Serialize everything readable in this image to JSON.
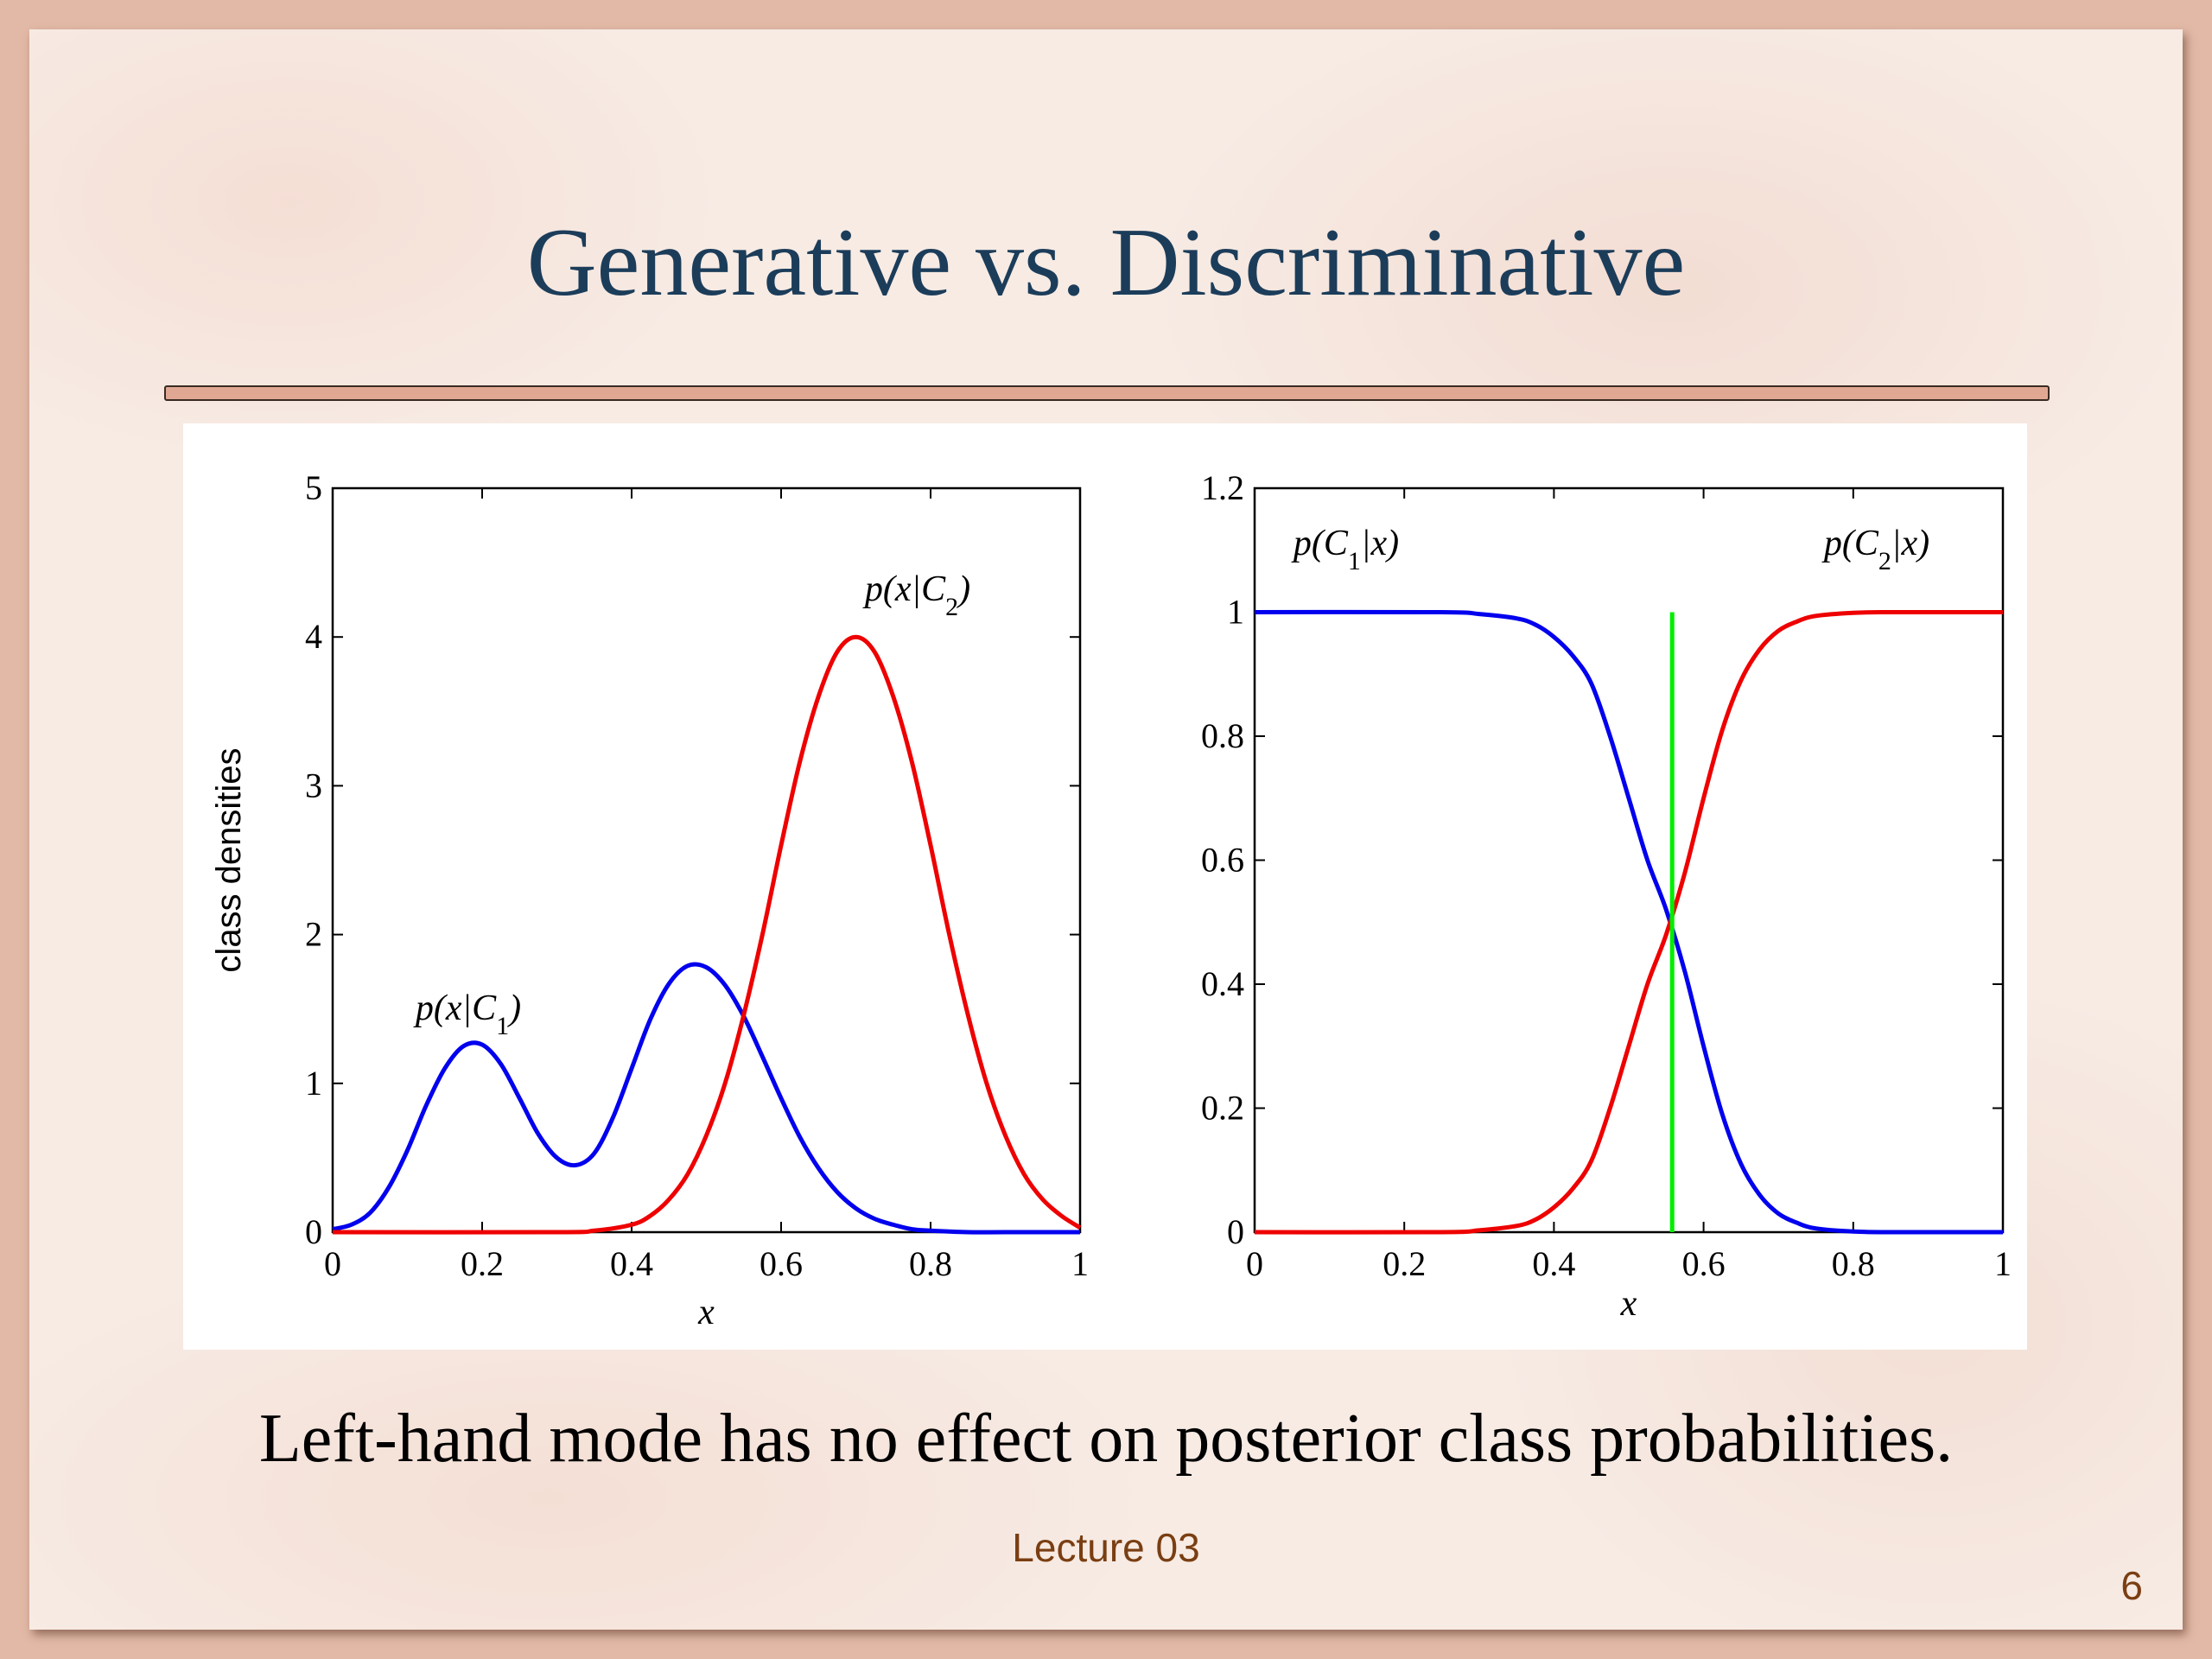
{
  "slide": {
    "title": "Generative vs. Discriminative",
    "caption": "Left-hand mode has no effect on posterior class probabilities.",
    "footer": "Lecture 03",
    "page_number": "6"
  },
  "colors": {
    "class1": "#0000ee",
    "class2": "#ee0000",
    "boundary": "#00ee00",
    "title": "#1c3d5a",
    "footer": "#7a3e12"
  },
  "chart_data": [
    {
      "type": "line",
      "xlabel": "x",
      "ylabel": "class densities",
      "xlim": [
        0,
        1
      ],
      "ylim": [
        0,
        5
      ],
      "xticks": [
        0,
        0.2,
        0.4,
        0.6,
        0.8,
        1
      ],
      "xtick_labels": [
        "0",
        "0.2",
        "0.4",
        "0.6",
        "0.8",
        "1"
      ],
      "yticks": [
        0,
        1,
        2,
        3,
        4,
        5
      ],
      "ytick_labels": [
        "0",
        "1",
        "2",
        "3",
        "4",
        "5"
      ],
      "annotations": [
        "p(x|C1)",
        "p(x|C2)"
      ],
      "series": [
        {
          "name": "p(x|C1)",
          "color": "#0000ee",
          "x": [
            0,
            0.025,
            0.05,
            0.075,
            0.1,
            0.125,
            0.15,
            0.175,
            0.2,
            0.225,
            0.25,
            0.275,
            0.3,
            0.325,
            0.35,
            0.375,
            0.4,
            0.425,
            0.45,
            0.475,
            0.5,
            0.525,
            0.55,
            0.575,
            0.6,
            0.625,
            0.65,
            0.675,
            0.7,
            0.725,
            0.75,
            0.775,
            0.8,
            0.85,
            0.9,
            1
          ],
          "y": [
            0.02,
            0.05,
            0.13,
            0.3,
            0.55,
            0.85,
            1.1,
            1.25,
            1.26,
            1.13,
            0.9,
            0.66,
            0.5,
            0.45,
            0.53,
            0.77,
            1.1,
            1.43,
            1.67,
            1.79,
            1.78,
            1.66,
            1.45,
            1.18,
            0.9,
            0.64,
            0.43,
            0.27,
            0.16,
            0.09,
            0.05,
            0.02,
            0.01,
            0,
            0,
            0
          ]
        },
        {
          "name": "p(x|C2)",
          "color": "#ee0000",
          "x": [
            0,
            0.3,
            0.35,
            0.4,
            0.425,
            0.45,
            0.475,
            0.5,
            0.525,
            0.55,
            0.575,
            0.6,
            0.625,
            0.65,
            0.675,
            0.7,
            0.725,
            0.75,
            0.775,
            0.8,
            0.825,
            0.85,
            0.875,
            0.9,
            0.925,
            0.95,
            0.975,
            1
          ],
          "y": [
            0,
            0,
            0.01,
            0.05,
            0.11,
            0.22,
            0.39,
            0.65,
            1.0,
            1.46,
            2.0,
            2.6,
            3.16,
            3.6,
            3.9,
            4.0,
            3.9,
            3.6,
            3.16,
            2.6,
            2.0,
            1.46,
            1.0,
            0.65,
            0.39,
            0.22,
            0.11,
            0.03
          ]
        }
      ]
    },
    {
      "type": "line",
      "xlabel": "x",
      "ylabel": "",
      "xlim": [
        0,
        1
      ],
      "ylim": [
        0,
        1.2
      ],
      "xticks": [
        0,
        0.2,
        0.4,
        0.6,
        0.8,
        1
      ],
      "xtick_labels": [
        "0",
        "0.2",
        "0.4",
        "0.6",
        "0.8",
        "1"
      ],
      "yticks": [
        0,
        0.2,
        0.4,
        0.6,
        0.8,
        1,
        1.2
      ],
      "ytick_labels": [
        "0",
        "0.2",
        "0.4",
        "0.6",
        "0.8",
        "1",
        "1.2"
      ],
      "annotations": [
        "p(C1|x)",
        "p(C2|x)"
      ],
      "decision_boundary": 0.558,
      "series": [
        {
          "name": "p(C1|x)",
          "color": "#0000ee",
          "x": [
            0,
            0.25,
            0.3,
            0.35,
            0.375,
            0.4,
            0.425,
            0.45,
            0.475,
            0.5,
            0.525,
            0.55,
            0.575,
            0.6,
            0.625,
            0.65,
            0.675,
            0.7,
            0.725,
            0.75,
            0.8,
            0.85,
            1
          ],
          "y": [
            1,
            1,
            0.997,
            0.99,
            0.98,
            0.96,
            0.93,
            0.885,
            0.8,
            0.7,
            0.6,
            0.52,
            0.42,
            0.3,
            0.19,
            0.11,
            0.06,
            0.03,
            0.015,
            0.006,
            0.001,
            0,
            0
          ]
        },
        {
          "name": "p(C2|x)",
          "color": "#ee0000",
          "x": [
            0,
            0.25,
            0.3,
            0.35,
            0.375,
            0.4,
            0.425,
            0.45,
            0.475,
            0.5,
            0.525,
            0.55,
            0.575,
            0.6,
            0.625,
            0.65,
            0.675,
            0.7,
            0.725,
            0.75,
            0.8,
            0.85,
            1
          ],
          "y": [
            0,
            0,
            0.003,
            0.01,
            0.02,
            0.04,
            0.07,
            0.115,
            0.2,
            0.3,
            0.4,
            0.48,
            0.58,
            0.7,
            0.81,
            0.89,
            0.94,
            0.97,
            0.985,
            0.994,
            0.999,
            1,
            1
          ]
        },
        {
          "name": "",
          "color": "#00ee00",
          "x": [
            0.558,
            0.558
          ],
          "y": [
            0,
            1
          ]
        }
      ]
    }
  ]
}
